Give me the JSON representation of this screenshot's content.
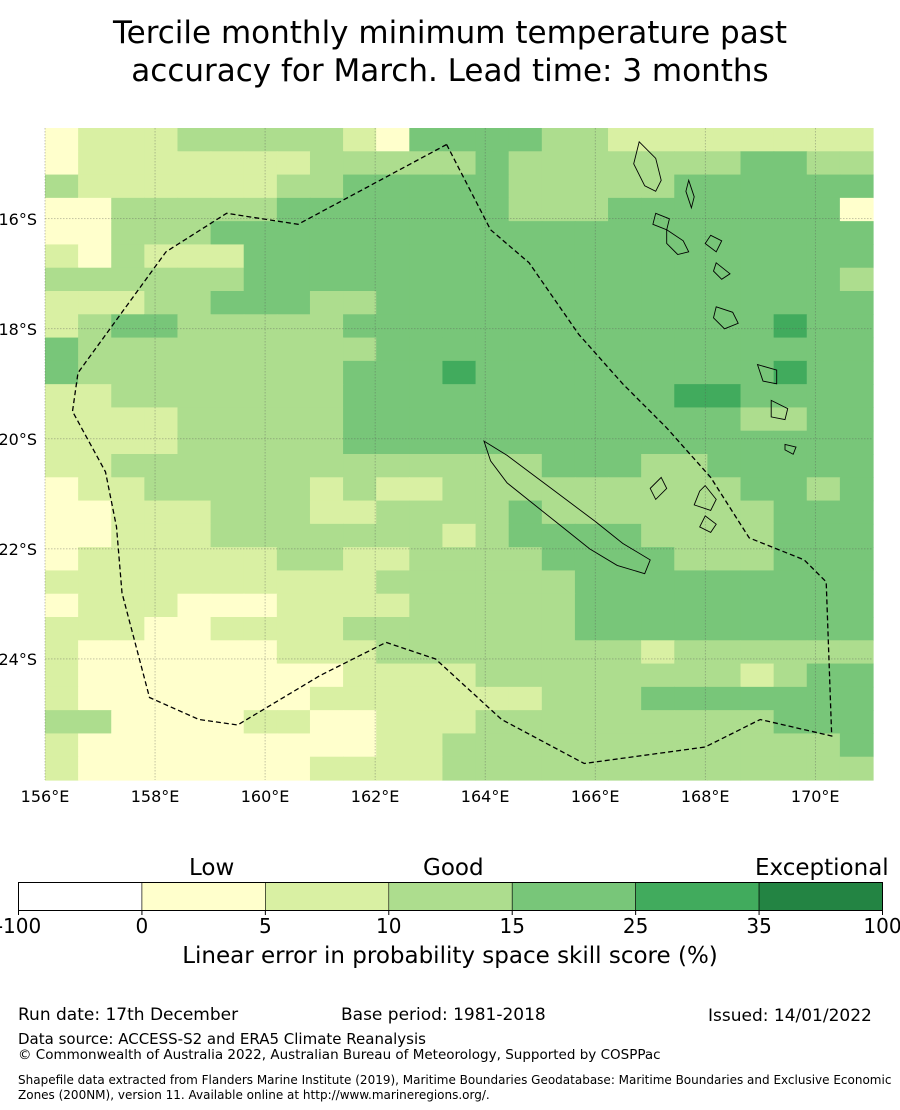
{
  "title": {
    "line1": "Tercile monthly minimum temperature past",
    "line2": "accuracy for March. Lead time: 3 months"
  },
  "map": {
    "lon_ticks": [
      "156°E",
      "158°E",
      "160°E",
      "162°E",
      "164°E",
      "166°E",
      "168°E",
      "170°E"
    ],
    "lat_ticks": [
      "16°S",
      "18°S",
      "20°S",
      "22°S",
      "24°S"
    ],
    "extent": {
      "lon_min": 156.0,
      "lon_max": 171.05,
      "lat_north": -14.35,
      "lat_south": -26.2
    },
    "cell_size_deg": 0.834,
    "category_colors": [
      "#ffffcc",
      "#d9f0a3",
      "#addd8e",
      "#78c679",
      "#41ab5d",
      "#238443"
    ],
    "grid_category_codes": [
      "0111222221033332211111111",
      "0111111122222322222223322",
      "2111111223333322222333333",
      "0022222333333322233333330",
      "0022233333333333333333333",
      "1021113333333333333333333",
      "2222223333333333333333332",
      "1112233322333333333333333",
      "1233222223333333333333433",
      "3222222222333333333333333",
      "3222222223334333333333433",
      "1122222223333333333443333",
      "1111222223333333333332233",
      "1111222223333333333333333",
      "1122222222222223332233333",
      "0112222212112222222223323",
      "0011122211222232222222333",
      "0011122222221233332222333",
      "0111111221122223333222333",
      "1111111111222222333333333",
      "0111000111122222333333333",
      "1110011112222222333333333",
      "1000000111222222221222222",
      "1000000001111222222221233",
      "1000000011111112223333333",
      "2200001100111222222222333",
      "1000000000112222222222223",
      "1000000011112222222222222"
    ],
    "boundary_path": [
      [
        163.3,
        -14.65
      ],
      [
        164.1,
        -16.2
      ],
      [
        164.8,
        -16.8
      ],
      [
        165.7,
        -18.1
      ],
      [
        166.5,
        -19.0
      ],
      [
        167.3,
        -19.8
      ],
      [
        168.1,
        -20.7
      ],
      [
        168.8,
        -21.8
      ],
      [
        169.8,
        -22.2
      ],
      [
        170.2,
        -22.6
      ],
      [
        170.3,
        -25.4
      ],
      [
        169.0,
        -25.1
      ],
      [
        168.0,
        -25.6
      ],
      [
        165.8,
        -25.9
      ],
      [
        164.3,
        -25.1
      ],
      [
        163.1,
        -24.0
      ],
      [
        162.2,
        -23.7
      ],
      [
        161.0,
        -24.3
      ],
      [
        159.5,
        -25.2
      ],
      [
        158.8,
        -25.1
      ],
      [
        157.9,
        -24.7
      ],
      [
        157.4,
        -22.8
      ],
      [
        157.3,
        -21.6
      ],
      [
        157.1,
        -20.6
      ],
      [
        156.5,
        -19.5
      ],
      [
        156.6,
        -18.8
      ],
      [
        157.4,
        -17.7
      ],
      [
        158.2,
        -16.6
      ],
      [
        159.3,
        -15.9
      ],
      [
        160.6,
        -16.1
      ],
      [
        163.3,
        -14.65
      ]
    ],
    "islands": [
      [
        [
          163.98,
          -20.04
        ],
        [
          164.4,
          -20.3
        ],
        [
          164.8,
          -20.6
        ],
        [
          165.2,
          -20.9
        ],
        [
          165.6,
          -21.2
        ],
        [
          166.0,
          -21.5
        ],
        [
          166.5,
          -21.9
        ],
        [
          167.0,
          -22.2
        ],
        [
          166.9,
          -22.45
        ],
        [
          166.4,
          -22.3
        ],
        [
          165.9,
          -22.0
        ],
        [
          165.4,
          -21.6
        ],
        [
          164.9,
          -21.2
        ],
        [
          164.4,
          -20.8
        ],
        [
          164.1,
          -20.4
        ]
      ],
      [
        [
          167.2,
          -20.7
        ],
        [
          167.3,
          -20.9
        ],
        [
          167.1,
          -21.1
        ],
        [
          167.0,
          -20.9
        ]
      ],
      [
        [
          168.0,
          -20.85
        ],
        [
          168.2,
          -21.1
        ],
        [
          168.1,
          -21.3
        ],
        [
          167.8,
          -21.2
        ],
        [
          167.9,
          -20.95
        ]
      ],
      [
        [
          168.0,
          -21.4
        ],
        [
          168.2,
          -21.55
        ],
        [
          168.1,
          -21.7
        ],
        [
          167.9,
          -21.6
        ]
      ],
      [
        [
          166.8,
          -14.6
        ],
        [
          167.1,
          -14.9
        ],
        [
          167.2,
          -15.3
        ],
        [
          167.1,
          -15.5
        ],
        [
          166.9,
          -15.4
        ],
        [
          166.7,
          -15.0
        ]
      ],
      [
        [
          167.7,
          -15.3
        ],
        [
          167.8,
          -15.6
        ],
        [
          167.75,
          -15.8
        ],
        [
          167.65,
          -15.5
        ]
      ],
      [
        [
          167.1,
          -15.9
        ],
        [
          167.35,
          -16.0
        ],
        [
          167.3,
          -16.2
        ],
        [
          167.05,
          -16.1
        ]
      ],
      [
        [
          167.3,
          -16.2
        ],
        [
          167.6,
          -16.4
        ],
        [
          167.7,
          -16.6
        ],
        [
          167.5,
          -16.65
        ],
        [
          167.3,
          -16.45
        ]
      ],
      [
        [
          168.1,
          -16.3
        ],
        [
          168.3,
          -16.4
        ],
        [
          168.2,
          -16.6
        ],
        [
          168.0,
          -16.45
        ]
      ],
      [
        [
          168.2,
          -16.8
        ],
        [
          168.45,
          -17.0
        ],
        [
          168.3,
          -17.1
        ],
        [
          168.15,
          -16.95
        ]
      ],
      [
        [
          168.2,
          -17.6
        ],
        [
          168.5,
          -17.7
        ],
        [
          168.6,
          -17.9
        ],
        [
          168.35,
          -18.0
        ],
        [
          168.15,
          -17.8
        ]
      ],
      [
        [
          168.95,
          -18.65
        ],
        [
          169.3,
          -18.75
        ],
        [
          169.3,
          -19.0
        ],
        [
          169.05,
          -18.95
        ]
      ],
      [
        [
          169.2,
          -19.3
        ],
        [
          169.5,
          -19.45
        ],
        [
          169.45,
          -19.65
        ],
        [
          169.2,
          -19.6
        ]
      ],
      [
        [
          169.45,
          -20.1
        ],
        [
          169.65,
          -20.15
        ],
        [
          169.6,
          -20.28
        ],
        [
          169.45,
          -20.2
        ]
      ]
    ]
  },
  "colorbar": {
    "tick_labels": [
      "-100",
      "0",
      "5",
      "10",
      "15",
      "25",
      "35",
      "100"
    ],
    "colors": [
      "#ffffff",
      "#ffffcc",
      "#d9f0a3",
      "#addd8e",
      "#78c679",
      "#41ab5d",
      "#238443"
    ],
    "category_labels": {
      "low": "Low",
      "good": "Good",
      "exceptional": "Exceptional"
    },
    "title": "Linear error in probability space skill score (%)"
  },
  "footer": {
    "run_date": "Run date: 17th December",
    "base_period": "Base period: 1981-2018",
    "issued": "Issued: 14/01/2022",
    "data_source": "Data source: ACCESS-S2 and ERA5 Climate Reanalysis",
    "copyright": "© Commonwealth of Australia 2022, Australian Bureau of Meteorology, Supported by COSPPac",
    "shapefile_line1": "Shapefile data extracted from Flanders Marine Institute (2019), Maritime Boundaries Geodatabase: Maritime Boundaries and Exclusive Economic",
    "shapefile_line2": "Zones (200NM), version 11. Available online at http://www.marineregions.org/."
  }
}
